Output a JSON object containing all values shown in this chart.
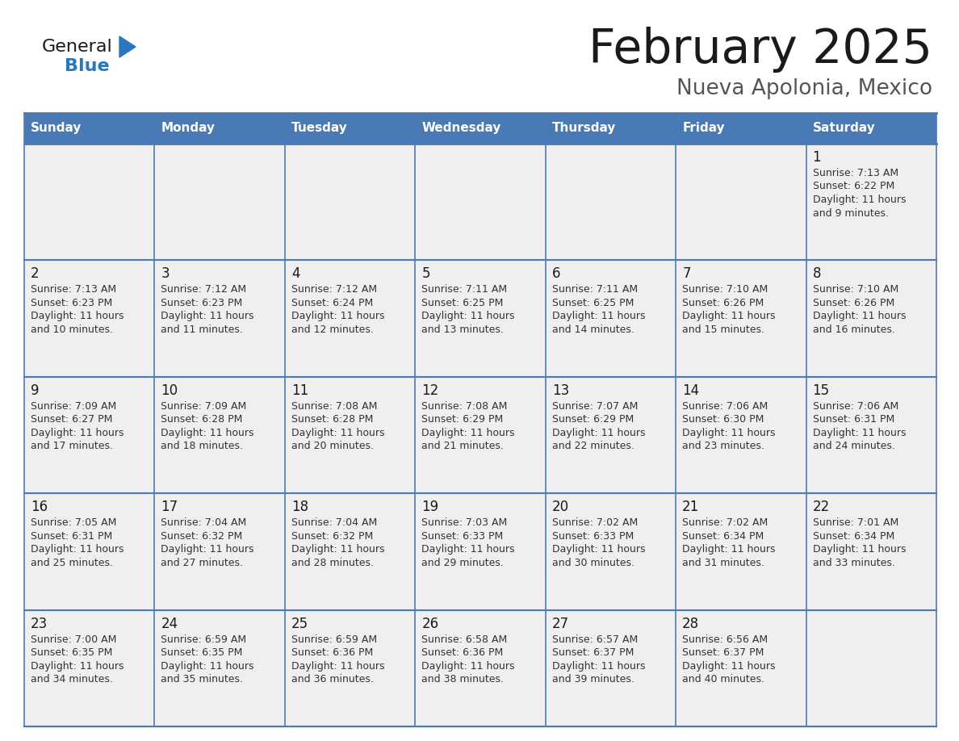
{
  "title": "February 2025",
  "subtitle": "Nueva Apolonia, Mexico",
  "header_color": "#4a7ab5",
  "header_text_color": "#ffffff",
  "cell_bg_color": "#efefef",
  "border_color": "#4a7ab5",
  "days_of_week": [
    "Sunday",
    "Monday",
    "Tuesday",
    "Wednesday",
    "Thursday",
    "Friday",
    "Saturday"
  ],
  "title_color": "#1a1a1a",
  "subtitle_color": "#555555",
  "day_num_color": "#1a1a1a",
  "info_color": "#333333",
  "logo_general_color": "#1a1a1a",
  "logo_blue_color": "#2878c0",
  "calendar": [
    [
      null,
      null,
      null,
      null,
      null,
      null,
      {
        "day": 1,
        "sunrise": "7:13 AM",
        "sunset": "6:22 PM",
        "daylight": "11 hours",
        "daylight2": "and 9 minutes."
      }
    ],
    [
      {
        "day": 2,
        "sunrise": "7:13 AM",
        "sunset": "6:23 PM",
        "daylight": "11 hours",
        "daylight2": "and 10 minutes."
      },
      {
        "day": 3,
        "sunrise": "7:12 AM",
        "sunset": "6:23 PM",
        "daylight": "11 hours",
        "daylight2": "and 11 minutes."
      },
      {
        "day": 4,
        "sunrise": "7:12 AM",
        "sunset": "6:24 PM",
        "daylight": "11 hours",
        "daylight2": "and 12 minutes."
      },
      {
        "day": 5,
        "sunrise": "7:11 AM",
        "sunset": "6:25 PM",
        "daylight": "11 hours",
        "daylight2": "and 13 minutes."
      },
      {
        "day": 6,
        "sunrise": "7:11 AM",
        "sunset": "6:25 PM",
        "daylight": "11 hours",
        "daylight2": "and 14 minutes."
      },
      {
        "day": 7,
        "sunrise": "7:10 AM",
        "sunset": "6:26 PM",
        "daylight": "11 hours",
        "daylight2": "and 15 minutes."
      },
      {
        "day": 8,
        "sunrise": "7:10 AM",
        "sunset": "6:26 PM",
        "daylight": "11 hours",
        "daylight2": "and 16 minutes."
      }
    ],
    [
      {
        "day": 9,
        "sunrise": "7:09 AM",
        "sunset": "6:27 PM",
        "daylight": "11 hours",
        "daylight2": "and 17 minutes."
      },
      {
        "day": 10,
        "sunrise": "7:09 AM",
        "sunset": "6:28 PM",
        "daylight": "11 hours",
        "daylight2": "and 18 minutes."
      },
      {
        "day": 11,
        "sunrise": "7:08 AM",
        "sunset": "6:28 PM",
        "daylight": "11 hours",
        "daylight2": "and 20 minutes."
      },
      {
        "day": 12,
        "sunrise": "7:08 AM",
        "sunset": "6:29 PM",
        "daylight": "11 hours",
        "daylight2": "and 21 minutes."
      },
      {
        "day": 13,
        "sunrise": "7:07 AM",
        "sunset": "6:29 PM",
        "daylight": "11 hours",
        "daylight2": "and 22 minutes."
      },
      {
        "day": 14,
        "sunrise": "7:06 AM",
        "sunset": "6:30 PM",
        "daylight": "11 hours",
        "daylight2": "and 23 minutes."
      },
      {
        "day": 15,
        "sunrise": "7:06 AM",
        "sunset": "6:31 PM",
        "daylight": "11 hours",
        "daylight2": "and 24 minutes."
      }
    ],
    [
      {
        "day": 16,
        "sunrise": "7:05 AM",
        "sunset": "6:31 PM",
        "daylight": "11 hours",
        "daylight2": "and 25 minutes."
      },
      {
        "day": 17,
        "sunrise": "7:04 AM",
        "sunset": "6:32 PM",
        "daylight": "11 hours",
        "daylight2": "and 27 minutes."
      },
      {
        "day": 18,
        "sunrise": "7:04 AM",
        "sunset": "6:32 PM",
        "daylight": "11 hours",
        "daylight2": "and 28 minutes."
      },
      {
        "day": 19,
        "sunrise": "7:03 AM",
        "sunset": "6:33 PM",
        "daylight": "11 hours",
        "daylight2": "and 29 minutes."
      },
      {
        "day": 20,
        "sunrise": "7:02 AM",
        "sunset": "6:33 PM",
        "daylight": "11 hours",
        "daylight2": "and 30 minutes."
      },
      {
        "day": 21,
        "sunrise": "7:02 AM",
        "sunset": "6:34 PM",
        "daylight": "11 hours",
        "daylight2": "and 31 minutes."
      },
      {
        "day": 22,
        "sunrise": "7:01 AM",
        "sunset": "6:34 PM",
        "daylight": "11 hours",
        "daylight2": "and 33 minutes."
      }
    ],
    [
      {
        "day": 23,
        "sunrise": "7:00 AM",
        "sunset": "6:35 PM",
        "daylight": "11 hours",
        "daylight2": "and 34 minutes."
      },
      {
        "day": 24,
        "sunrise": "6:59 AM",
        "sunset": "6:35 PM",
        "daylight": "11 hours",
        "daylight2": "and 35 minutes."
      },
      {
        "day": 25,
        "sunrise": "6:59 AM",
        "sunset": "6:36 PM",
        "daylight": "11 hours",
        "daylight2": "and 36 minutes."
      },
      {
        "day": 26,
        "sunrise": "6:58 AM",
        "sunset": "6:36 PM",
        "daylight": "11 hours",
        "daylight2": "and 38 minutes."
      },
      {
        "day": 27,
        "sunrise": "6:57 AM",
        "sunset": "6:37 PM",
        "daylight": "11 hours",
        "daylight2": "and 39 minutes."
      },
      {
        "day": 28,
        "sunrise": "6:56 AM",
        "sunset": "6:37 PM",
        "daylight": "11 hours",
        "daylight2": "and 40 minutes."
      },
      null
    ]
  ]
}
